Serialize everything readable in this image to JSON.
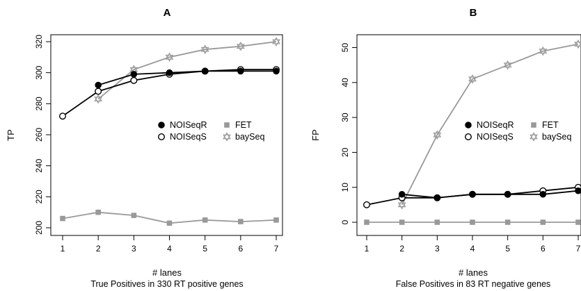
{
  "chart_data": [
    {
      "type": "line",
      "title": "A",
      "ylabel": "TP",
      "xlabel": "# lanes",
      "subtitle": "True Positives in 330 RT positive genes",
      "x_ticks": [
        1,
        2,
        3,
        4,
        5,
        6,
        7
      ],
      "y_ticks": [
        200,
        220,
        240,
        260,
        280,
        300,
        320
      ],
      "xlim": [
        1,
        7
      ],
      "ylim": [
        200,
        320
      ],
      "grid": false,
      "legend_position": "right",
      "series": [
        {
          "name": "NOISeqR",
          "marker": "filled-circle",
          "color": "#000000",
          "x": [
            2,
            3,
            4,
            5,
            6,
            7
          ],
          "y": [
            292,
            299,
            300,
            301,
            301,
            301
          ]
        },
        {
          "name": "FET",
          "marker": "filled-square",
          "color": "#999999",
          "x": [
            1,
            2,
            3,
            4,
            5,
            6,
            7
          ],
          "y": [
            206,
            210,
            208,
            203,
            205,
            204,
            205
          ]
        },
        {
          "name": "NOISeqS",
          "marker": "open-circle",
          "color": "#000000",
          "x": [
            1,
            2,
            3,
            4,
            5,
            6,
            7
          ],
          "y": [
            272,
            288,
            295,
            299,
            301,
            302,
            302
          ]
        },
        {
          "name": "baySeq",
          "marker": "star",
          "color": "#999999",
          "x": [
            2,
            3,
            4,
            5,
            6,
            7
          ],
          "y": [
            283,
            302,
            310,
            315,
            317,
            320
          ]
        }
      ]
    },
    {
      "type": "line",
      "title": "B",
      "ylabel": "FP",
      "xlabel": "# lanes",
      "subtitle": "False Positives in 83 RT negative genes",
      "x_ticks": [
        1,
        2,
        3,
        4,
        5,
        6,
        7
      ],
      "y_ticks": [
        0,
        10,
        20,
        30,
        40,
        50
      ],
      "xlim": [
        1,
        7
      ],
      "ylim": [
        0,
        51
      ],
      "grid": false,
      "legend_position": "right",
      "series": [
        {
          "name": "NOISeqR",
          "marker": "filled-circle",
          "color": "#000000",
          "x": [
            2,
            3,
            4,
            5,
            6,
            7
          ],
          "y": [
            8,
            7,
            8,
            8,
            8,
            9
          ]
        },
        {
          "name": "FET",
          "marker": "filled-square",
          "color": "#999999",
          "x": [
            1,
            2,
            3,
            4,
            5,
            6,
            7
          ],
          "y": [
            0,
            0,
            0,
            0,
            0,
            0,
            0
          ]
        },
        {
          "name": "NOISeqS",
          "marker": "open-circle",
          "color": "#000000",
          "x": [
            1,
            2,
            3,
            4,
            5,
            6,
            7
          ],
          "y": [
            5,
            7,
            7,
            8,
            8,
            9,
            10
          ]
        },
        {
          "name": "baySeq",
          "marker": "star",
          "color": "#999999",
          "x": [
            2,
            3,
            4,
            5,
            6,
            7
          ],
          "y": [
            5,
            25,
            41,
            45,
            49,
            51
          ]
        }
      ]
    }
  ]
}
